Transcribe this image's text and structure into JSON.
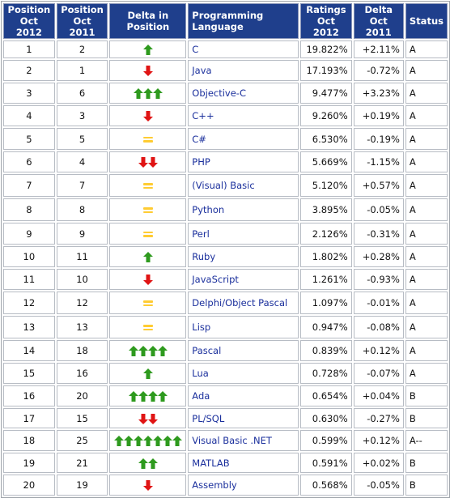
{
  "columns": [
    "Position\nOct 2012",
    "Position\nOct 2011",
    "Delta in Position",
    "Programming Language",
    "Ratings\nOct 2012",
    "Delta\nOct 2011",
    "Status"
  ],
  "rows": [
    {
      "pos2012": "1",
      "pos2011": "2",
      "delta_dir": "up",
      "delta_count": 1,
      "language": "C",
      "rating": "19.822%",
      "delta": "+2.11%",
      "status": "A"
    },
    {
      "pos2012": "2",
      "pos2011": "1",
      "delta_dir": "down",
      "delta_count": 1,
      "language": "Java",
      "rating": "17.193%",
      "delta": "-0.72%",
      "status": "A"
    },
    {
      "pos2012": "3",
      "pos2011": "6",
      "delta_dir": "up",
      "delta_count": 3,
      "language": "Objective-C",
      "rating": "9.477%",
      "delta": "+3.23%",
      "status": "A"
    },
    {
      "pos2012": "4",
      "pos2011": "3",
      "delta_dir": "down",
      "delta_count": 1,
      "language": "C++",
      "rating": "9.260%",
      "delta": "+0.19%",
      "status": "A"
    },
    {
      "pos2012": "5",
      "pos2011": "5",
      "delta_dir": "same",
      "delta_count": 1,
      "language": "C#",
      "rating": "6.530%",
      "delta": "-0.19%",
      "status": "A"
    },
    {
      "pos2012": "6",
      "pos2011": "4",
      "delta_dir": "down",
      "delta_count": 2,
      "language": "PHP",
      "rating": "5.669%",
      "delta": "-1.15%",
      "status": "A"
    },
    {
      "pos2012": "7",
      "pos2011": "7",
      "delta_dir": "same",
      "delta_count": 1,
      "language": "(Visual) Basic",
      "rating": "5.120%",
      "delta": "+0.57%",
      "status": "A"
    },
    {
      "pos2012": "8",
      "pos2011": "8",
      "delta_dir": "same",
      "delta_count": 1,
      "language": "Python",
      "rating": "3.895%",
      "delta": "-0.05%",
      "status": "A"
    },
    {
      "pos2012": "9",
      "pos2011": "9",
      "delta_dir": "same",
      "delta_count": 1,
      "language": "Perl",
      "rating": "2.126%",
      "delta": "-0.31%",
      "status": "A"
    },
    {
      "pos2012": "10",
      "pos2011": "11",
      "delta_dir": "up",
      "delta_count": 1,
      "language": "Ruby",
      "rating": "1.802%",
      "delta": "+0.28%",
      "status": "A"
    },
    {
      "pos2012": "11",
      "pos2011": "10",
      "delta_dir": "down",
      "delta_count": 1,
      "language": "JavaScript",
      "rating": "1.261%",
      "delta": "-0.93%",
      "status": "A"
    },
    {
      "pos2012": "12",
      "pos2011": "12",
      "delta_dir": "same",
      "delta_count": 1,
      "language": "Delphi/Object Pascal",
      "rating": "1.097%",
      "delta": "-0.01%",
      "status": "A"
    },
    {
      "pos2012": "13",
      "pos2011": "13",
      "delta_dir": "same",
      "delta_count": 1,
      "language": "Lisp",
      "rating": "0.947%",
      "delta": "-0.08%",
      "status": "A"
    },
    {
      "pos2012": "14",
      "pos2011": "18",
      "delta_dir": "up",
      "delta_count": 4,
      "language": "Pascal",
      "rating": "0.839%",
      "delta": "+0.12%",
      "status": "A"
    },
    {
      "pos2012": "15",
      "pos2011": "16",
      "delta_dir": "up",
      "delta_count": 1,
      "language": "Lua",
      "rating": "0.728%",
      "delta": "-0.07%",
      "status": "A"
    },
    {
      "pos2012": "16",
      "pos2011": "20",
      "delta_dir": "up",
      "delta_count": 4,
      "language": "Ada",
      "rating": "0.654%",
      "delta": "+0.04%",
      "status": "B"
    },
    {
      "pos2012": "17",
      "pos2011": "15",
      "delta_dir": "down",
      "delta_count": 2,
      "language": "PL/SQL",
      "rating": "0.630%",
      "delta": "-0.27%",
      "status": "B"
    },
    {
      "pos2012": "18",
      "pos2011": "25",
      "delta_dir": "up",
      "delta_count": 7,
      "language": "Visual Basic .NET",
      "rating": "0.599%",
      "delta": "+0.12%",
      "status": "A--"
    },
    {
      "pos2012": "19",
      "pos2011": "21",
      "delta_dir": "up",
      "delta_count": 2,
      "language": "MATLAB",
      "rating": "0.591%",
      "delta": "+0.02%",
      "status": "B"
    },
    {
      "pos2012": "20",
      "pos2011": "19",
      "delta_dir": "down",
      "delta_count": 1,
      "language": "Assembly",
      "rating": "0.568%",
      "delta": "-0.05%",
      "status": "B"
    }
  ],
  "colors": {
    "header_bg": "#1f3f8c",
    "header_text": "#ffffff",
    "link": "#1a2f9c",
    "arrow_up": "#2e9a1e",
    "arrow_down": "#e01414",
    "equal": "#ffcc33"
  }
}
